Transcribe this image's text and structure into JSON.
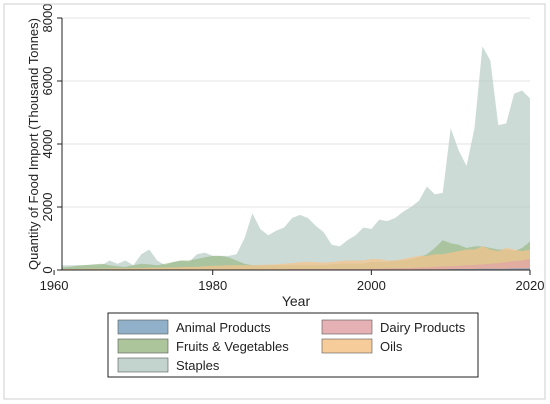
{
  "chart_data": {
    "type": "area",
    "title": "",
    "xlabel": "Year",
    "ylabel": "Quantity of Food Import (Thousand Tonnes)",
    "xlim": [
      1961,
      2020
    ],
    "ylim": [
      0,
      8000
    ],
    "xticks": [
      1960,
      1980,
      2000,
      2020
    ],
    "yticks": [
      0,
      2000,
      4000,
      6000,
      8000
    ],
    "grid": "horizontal",
    "legend_position": "bottom",
    "legend_layout": "2 columns",
    "x": [
      1961,
      1962,
      1963,
      1964,
      1965,
      1966,
      1967,
      1968,
      1969,
      1970,
      1971,
      1972,
      1973,
      1974,
      1975,
      1976,
      1977,
      1978,
      1979,
      1980,
      1981,
      1982,
      1983,
      1984,
      1985,
      1986,
      1987,
      1988,
      1989,
      1990,
      1991,
      1992,
      1993,
      1994,
      1995,
      1996,
      1997,
      1998,
      1999,
      2000,
      2001,
      2002,
      2003,
      2004,
      2005,
      2006,
      2007,
      2008,
      2009,
      2010,
      2011,
      2012,
      2013,
      2014,
      2015,
      2016,
      2017,
      2018,
      2019,
      2020
    ],
    "series": [
      {
        "name": "Animal Products",
        "color": "#7ea3c1",
        "values": [
          10,
          10,
          10,
          10,
          10,
          10,
          10,
          10,
          10,
          10,
          10,
          10,
          10,
          10,
          10,
          10,
          10,
          10,
          10,
          10,
          10,
          10,
          10,
          10,
          10,
          10,
          10,
          10,
          10,
          10,
          10,
          10,
          10,
          10,
          10,
          10,
          10,
          10,
          10,
          10,
          10,
          10,
          10,
          10,
          10,
          20,
          20,
          20,
          20,
          30,
          30,
          30,
          30,
          40,
          40,
          40,
          40,
          50,
          50,
          60
        ]
      },
      {
        "name": "Dairy Products",
        "color": "#e0a3a8",
        "values": [
          20,
          20,
          20,
          20,
          20,
          20,
          20,
          20,
          20,
          20,
          20,
          20,
          20,
          20,
          20,
          20,
          20,
          20,
          20,
          20,
          20,
          20,
          20,
          20,
          20,
          20,
          20,
          20,
          20,
          30,
          30,
          30,
          30,
          30,
          30,
          30,
          30,
          30,
          30,
          40,
          40,
          50,
          50,
          60,
          60,
          80,
          80,
          100,
          110,
          120,
          130,
          150,
          160,
          180,
          200,
          220,
          250,
          280,
          300,
          350
        ]
      },
      {
        "name": "Fruits & Vegetables",
        "color": "#9dbb8a",
        "values": [
          80,
          100,
          140,
          160,
          180,
          200,
          150,
          120,
          100,
          150,
          200,
          180,
          150,
          200,
          250,
          300,
          300,
          350,
          400,
          450,
          450,
          400,
          300,
          200,
          150,
          150,
          150,
          150,
          150,
          150,
          150,
          150,
          150,
          150,
          180,
          200,
          200,
          200,
          200,
          250,
          250,
          250,
          300,
          300,
          350,
          400,
          500,
          700,
          950,
          850,
          800,
          700,
          750,
          750,
          700,
          650,
          650,
          600,
          700,
          900
        ]
      },
      {
        "name": "Oils",
        "color": "#f5c38a",
        "values": [
          30,
          30,
          30,
          40,
          40,
          40,
          50,
          50,
          50,
          60,
          60,
          70,
          70,
          80,
          80,
          90,
          100,
          100,
          120,
          130,
          140,
          150,
          150,
          150,
          150,
          160,
          170,
          180,
          200,
          220,
          250,
          260,
          250,
          240,
          250,
          280,
          300,
          300,
          300,
          350,
          350,
          300,
          300,
          350,
          400,
          450,
          450,
          500,
          500,
          550,
          600,
          650,
          650,
          750,
          650,
          600,
          700,
          650,
          600,
          650
        ]
      },
      {
        "name": "Staples",
        "color": "#b9cdc6",
        "values": [
          150,
          150,
          150,
          150,
          150,
          150,
          300,
          200,
          300,
          150,
          500,
          650,
          300,
          150,
          250,
          300,
          250,
          500,
          550,
          450,
          450,
          450,
          500,
          1000,
          1800,
          1300,
          1100,
          1250,
          1350,
          1650,
          1750,
          1650,
          1400,
          1200,
          800,
          750,
          950,
          1100,
          1350,
          1300,
          1600,
          1550,
          1650,
          1850,
          2000,
          2200,
          2650,
          2400,
          2450,
          4500,
          3800,
          3300,
          4500,
          7100,
          6650,
          4600,
          4650,
          5600,
          5700,
          5450
        ]
      }
    ]
  }
}
